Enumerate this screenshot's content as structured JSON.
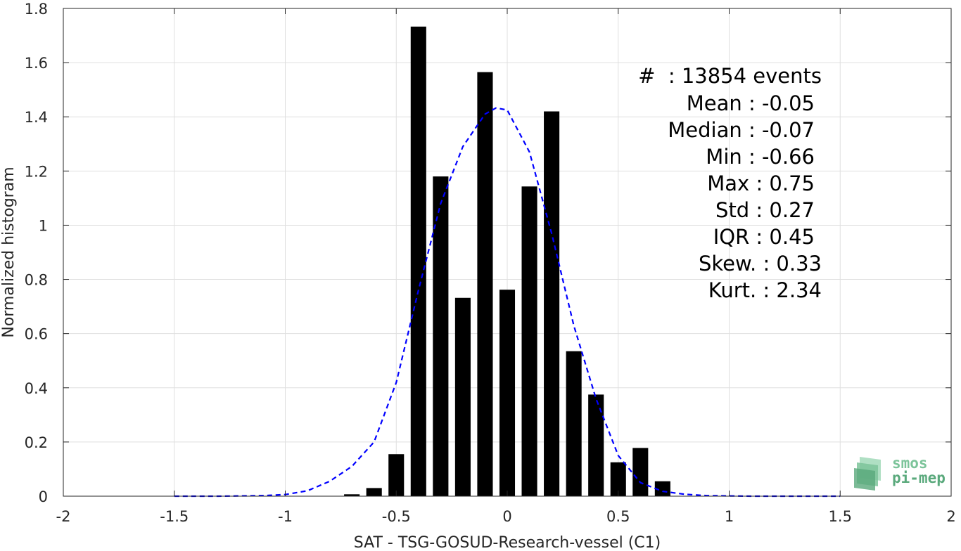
{
  "chart_data": {
    "type": "bar",
    "xlabel": "SAT - TSG-GOSUD-Research-vessel (C1)",
    "ylabel": "Normalized histogram",
    "xlim": [
      -2,
      2
    ],
    "ylim": [
      0,
      1.8
    ],
    "xticks": [
      "-2",
      "-1.5",
      "-1",
      "-0.5",
      "0",
      "0.5",
      "1",
      "1.5",
      "2"
    ],
    "yticks": [
      "0",
      "0.2",
      "0.4",
      "0.6",
      "0.8",
      "1",
      "1.2",
      "1.4",
      "1.6",
      "1.8"
    ],
    "grid": true,
    "bar_width": 0.07,
    "bars": {
      "x": [
        -0.7,
        -0.6,
        -0.5,
        -0.4,
        -0.3,
        -0.2,
        -0.1,
        0.0,
        0.1,
        0.2,
        0.3,
        0.4,
        0.5,
        0.6,
        0.7
      ],
      "values": [
        0.007,
        0.03,
        0.155,
        1.733,
        1.18,
        0.732,
        1.565,
        0.762,
        1.143,
        1.42,
        0.535,
        0.375,
        0.125,
        0.178,
        0.055
      ]
    },
    "fit_curve": {
      "style": "dashed",
      "x": [
        -1.5,
        -1.4,
        -1.3,
        -1.2,
        -1.1,
        -1.0,
        -0.9,
        -0.8,
        -0.7,
        -0.6,
        -0.5,
        -0.4,
        -0.3,
        -0.2,
        -0.1,
        -0.05,
        0.0,
        0.1,
        0.2,
        0.3,
        0.4,
        0.5,
        0.6,
        0.7,
        0.8,
        0.9,
        1.0,
        1.1,
        1.2,
        1.3,
        1.4,
        1.5
      ],
      "y": [
        0.0,
        0.0,
        0.0,
        0.001,
        0.002,
        0.006,
        0.02,
        0.055,
        0.11,
        0.2,
        0.42,
        0.76,
        1.08,
        1.29,
        1.41,
        1.433,
        1.425,
        1.27,
        0.97,
        0.63,
        0.36,
        0.15,
        0.05,
        0.018,
        0.007,
        0.002,
        0.001,
        0.0,
        0.0,
        0.0,
        0.0,
        0.0
      ]
    },
    "colors": {
      "bars": "#000000",
      "fit": "#0000ff",
      "grid": "#dfdfdf",
      "axis": "#262626"
    }
  },
  "stats": [
    "#  : 13854 events",
    "Mean : -0.05",
    "Median : -0.07",
    "Min : -0.66",
    "Max : 0.75",
    "Std : 0.27",
    "IQR : 0.45",
    "Skew. : 0.33",
    "Kurt. : 2.34"
  ],
  "logo": {
    "line1": "smos",
    "line2": "pi-mep",
    "color": "#7cc49a"
  }
}
